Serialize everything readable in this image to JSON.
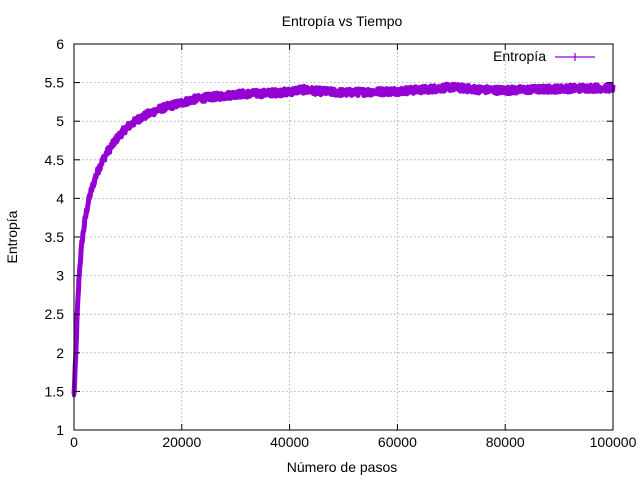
{
  "chart_data": {
    "type": "line",
    "title": "Entropía vs Tiempo",
    "xlabel": "Número de pasos",
    "ylabel": "Entropía",
    "xlim": [
      0,
      100000
    ],
    "ylim": [
      1,
      6
    ],
    "xticks": [
      0,
      20000,
      40000,
      60000,
      80000,
      100000
    ],
    "yticks": [
      1,
      1.5,
      2,
      2.5,
      3,
      3.5,
      4,
      4.5,
      5,
      5.5,
      6
    ],
    "grid": true,
    "legend_position": "top-right",
    "series": [
      {
        "name": "Entropía",
        "color": "#9400d3",
        "x": [
          0,
          300,
          600,
          1000,
          1500,
          2000,
          2500,
          3000,
          4000,
          5000,
          6000,
          7000,
          8000,
          9000,
          10000,
          12000,
          14000,
          16000,
          18000,
          20000,
          22000,
          25000,
          28000,
          30000,
          35000,
          40000,
          42000,
          45000,
          50000,
          55000,
          60000,
          65000,
          70000,
          75000,
          80000,
          85000,
          90000,
          95000,
          100000
        ],
        "values": [
          1.45,
          1.9,
          2.5,
          3.05,
          3.45,
          3.7,
          3.9,
          4.05,
          4.28,
          4.45,
          4.58,
          4.68,
          4.78,
          4.86,
          4.93,
          5.03,
          5.1,
          5.16,
          5.2,
          5.24,
          5.28,
          5.31,
          5.33,
          5.35,
          5.36,
          5.38,
          5.41,
          5.39,
          5.37,
          5.38,
          5.39,
          5.41,
          5.44,
          5.41,
          5.4,
          5.41,
          5.42,
          5.43,
          5.43
        ]
      }
    ]
  }
}
